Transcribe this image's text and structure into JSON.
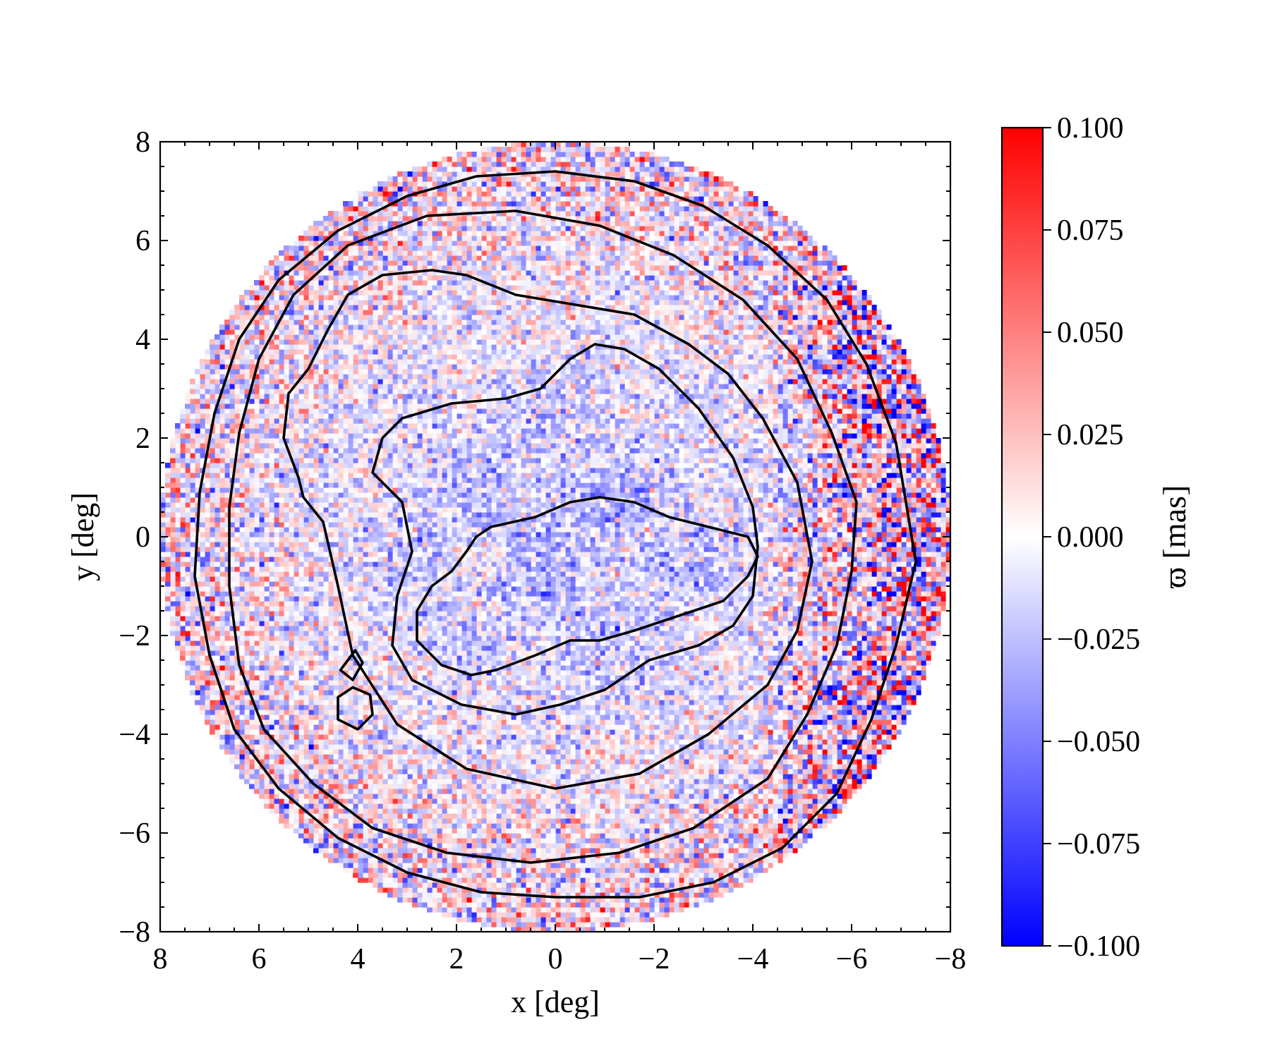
{
  "chart_data": {
    "type": "heatmap",
    "title": "",
    "xlabel": "x [deg]",
    "ylabel": "y [deg]",
    "xlim": [
      8,
      -8
    ],
    "ylim": [
      -8,
      8
    ],
    "x_inverted": true,
    "xticks": [
      8,
      6,
      4,
      2,
      0,
      -2,
      -4,
      -6,
      -8
    ],
    "yticks": [
      8,
      6,
      4,
      2,
      0,
      -2,
      -4,
      -6,
      -8
    ],
    "xtick_labels": [
      "8",
      "6",
      "4",
      "2",
      "0",
      "−2",
      "−4",
      "−6",
      "−8"
    ],
    "ytick_labels": [
      "8",
      "6",
      "4",
      "2",
      "0",
      "−2",
      "−4",
      "−6",
      "−8"
    ],
    "grid": false,
    "data_region": "disk of radius 8 deg centered at (0, 0)",
    "colormap": "bwr",
    "colorbar": {
      "label": "ϖ [mas]",
      "range": [
        -0.1,
        0.1
      ],
      "ticks": [
        0.1,
        0.075,
        0.05,
        0.025,
        0.0,
        -0.025,
        -0.05,
        -0.075,
        -0.1
      ],
      "tick_labels": [
        "0.100",
        "0.075",
        "0.050",
        "0.025",
        "0.000",
        "−0.025",
        "−0.050",
        "−0.075",
        "−0.100"
      ],
      "low_color": "#0000ff",
      "mid_color": "#ffffff",
      "high_color": "#ff0000"
    },
    "field_description": "Mostly noisy light values; predominantly negative (blue, about -0.02 to -0.06 mas) inside the inner contours, mixed slightly positive in the outer ring, strong alternating noise (about -0.1 to +0.1 mas) toward the eastern limb at x < -4 deg",
    "contours": [
      {
        "name": "c1",
        "points": [
          [
            -3.7,
            -1.0
          ],
          [
            -3.4,
            -1.3
          ],
          [
            -1.6,
            -1.9
          ],
          [
            -0.9,
            -2.1
          ],
          [
            -0.3,
            -2.1
          ],
          [
            0.4,
            -2.4
          ],
          [
            1.2,
            -2.7
          ],
          [
            1.7,
            -2.8
          ],
          [
            2.3,
            -2.6
          ],
          [
            2.8,
            -2.1
          ],
          [
            2.8,
            -1.5
          ],
          [
            2.5,
            -1.0
          ],
          [
            2.1,
            -0.7
          ],
          [
            1.8,
            -0.3
          ],
          [
            1.6,
            0.0
          ],
          [
            1.3,
            0.2
          ],
          [
            0.4,
            0.4
          ],
          [
            -0.3,
            0.7
          ],
          [
            -0.9,
            0.8
          ],
          [
            -1.6,
            0.7
          ],
          [
            -2.3,
            0.4
          ],
          [
            -3.1,
            0.2
          ],
          [
            -3.9,
            0.0
          ],
          [
            -4.1,
            -0.4
          ],
          [
            -3.9,
            -0.8
          ]
        ]
      },
      {
        "name": "c2",
        "points": [
          [
            -4.0,
            -1.2
          ],
          [
            -3.6,
            -1.8
          ],
          [
            -2.9,
            -2.2
          ],
          [
            -1.9,
            -2.5
          ],
          [
            -1.0,
            -3.1
          ],
          [
            -0.1,
            -3.4
          ],
          [
            0.8,
            -3.6
          ],
          [
            1.9,
            -3.4
          ],
          [
            2.9,
            -2.9
          ],
          [
            3.3,
            -2.2
          ],
          [
            3.2,
            -1.2
          ],
          [
            2.9,
            -0.3
          ],
          [
            3.1,
            0.7
          ],
          [
            3.7,
            1.3
          ],
          [
            3.5,
            2.0
          ],
          [
            3.1,
            2.4
          ],
          [
            2.1,
            2.7
          ],
          [
            1.0,
            2.8
          ],
          [
            0.3,
            3.0
          ],
          [
            -0.3,
            3.6
          ],
          [
            -0.8,
            3.9
          ],
          [
            -1.4,
            3.8
          ],
          [
            -2.1,
            3.4
          ],
          [
            -2.9,
            2.6
          ],
          [
            -3.6,
            1.6
          ],
          [
            -4.0,
            0.6
          ],
          [
            -4.1,
            -0.2
          ]
        ]
      },
      {
        "name": "c3",
        "points": [
          [
            -5.2,
            -0.5
          ],
          [
            -4.9,
            -1.9
          ],
          [
            -4.3,
            -3.0
          ],
          [
            -3.1,
            -4.0
          ],
          [
            -1.7,
            -4.8
          ],
          [
            0.0,
            -5.1
          ],
          [
            1.8,
            -4.7
          ],
          [
            3.2,
            -3.8
          ],
          [
            4.1,
            -2.4
          ],
          [
            4.4,
            -1.0
          ],
          [
            4.7,
            0.3
          ],
          [
            5.1,
            0.8
          ],
          [
            5.2,
            1.2
          ],
          [
            5.5,
            2.0
          ],
          [
            5.4,
            2.9
          ],
          [
            5.0,
            3.4
          ],
          [
            4.6,
            4.2
          ],
          [
            4.2,
            4.9
          ],
          [
            3.5,
            5.3
          ],
          [
            2.5,
            5.4
          ],
          [
            1.8,
            5.3
          ],
          [
            0.8,
            4.9
          ],
          [
            -0.4,
            4.7
          ],
          [
            -1.6,
            4.5
          ],
          [
            -2.7,
            3.9
          ],
          [
            -3.5,
            3.3
          ],
          [
            -4.2,
            2.4
          ],
          [
            -4.9,
            1.1
          ]
        ]
      },
      {
        "name": "c4",
        "points": [
          [
            -6.0,
            -0.7
          ],
          [
            -5.7,
            -2.2
          ],
          [
            -5.1,
            -3.6
          ],
          [
            -4.3,
            -4.9
          ],
          [
            -2.8,
            -5.9
          ],
          [
            -1.3,
            -6.4
          ],
          [
            0.5,
            -6.6
          ],
          [
            2.2,
            -6.4
          ],
          [
            3.7,
            -5.9
          ],
          [
            4.9,
            -5.0
          ],
          [
            5.9,
            -3.9
          ],
          [
            6.4,
            -2.6
          ],
          [
            6.6,
            -1.0
          ],
          [
            6.6,
            0.6
          ],
          [
            6.4,
            2.1
          ],
          [
            6.0,
            3.6
          ],
          [
            5.3,
            4.9
          ],
          [
            4.2,
            5.9
          ],
          [
            2.6,
            6.5
          ],
          [
            0.8,
            6.6
          ],
          [
            -0.9,
            6.3
          ],
          [
            -2.4,
            5.7
          ],
          [
            -3.8,
            4.8
          ],
          [
            -4.9,
            3.6
          ],
          [
            -5.6,
            2.1
          ],
          [
            -6.1,
            0.7
          ]
        ]
      },
      {
        "name": "c5",
        "points": [
          [
            -7.3,
            -0.5
          ],
          [
            -6.9,
            -2.2
          ],
          [
            -6.4,
            -3.7
          ],
          [
            -5.7,
            -5.2
          ],
          [
            -4.6,
            -6.3
          ],
          [
            -3.2,
            -7.0
          ],
          [
            -1.7,
            -7.3
          ],
          [
            0.0,
            -7.3
          ],
          [
            1.5,
            -7.2
          ],
          [
            3.0,
            -6.8
          ],
          [
            4.4,
            -6.1
          ],
          [
            5.6,
            -5.1
          ],
          [
            6.5,
            -3.9
          ],
          [
            7.0,
            -2.4
          ],
          [
            7.3,
            -0.8
          ],
          [
            7.2,
            0.9
          ],
          [
            6.9,
            2.5
          ],
          [
            6.4,
            4.0
          ],
          [
            5.6,
            5.2
          ],
          [
            4.4,
            6.2
          ],
          [
            3.0,
            6.9
          ],
          [
            1.6,
            7.3
          ],
          [
            0.0,
            7.4
          ],
          [
            -1.6,
            7.2
          ],
          [
            -3.0,
            6.7
          ],
          [
            -4.3,
            5.9
          ],
          [
            -5.5,
            4.8
          ],
          [
            -6.3,
            3.5
          ],
          [
            -6.9,
            1.9
          ]
        ]
      },
      {
        "name": "islet-a",
        "points": [
          [
            4.05,
            -2.3
          ],
          [
            3.9,
            -2.55
          ],
          [
            4.1,
            -2.9
          ],
          [
            4.35,
            -2.7
          ]
        ]
      },
      {
        "name": "islet-b",
        "points": [
          [
            4.1,
            -3.05
          ],
          [
            3.75,
            -3.2
          ],
          [
            3.7,
            -3.6
          ],
          [
            4.0,
            -3.9
          ],
          [
            4.4,
            -3.7
          ],
          [
            4.4,
            -3.25
          ]
        ]
      }
    ]
  }
}
